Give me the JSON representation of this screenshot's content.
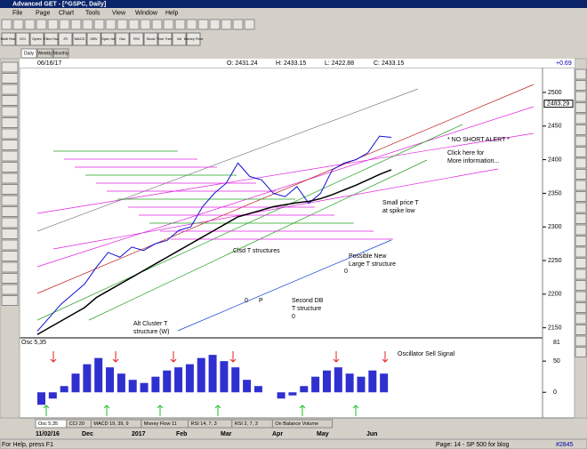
{
  "window_title": "Advanced GET - [^GSPC, Daily]",
  "menu": [
    "File",
    "Page",
    "Chart",
    "Tools",
    "View",
    "Window",
    "Help"
  ],
  "toolbar": [
    "Multi Rstd",
    "OCI",
    "Optex",
    "Elliot Osc",
    "JTI",
    "MACD",
    "OBV",
    "Open Int",
    "Osc",
    "RSI",
    "Stock",
    "Time Trend",
    "Vol",
    "Money Flow"
  ],
  "timeframe_tabs": [
    "Daily",
    "Weekly",
    "Monthly"
  ],
  "header": {
    "date": "06/16/17",
    "open": "O: 2431.24",
    "high": "H: 2433.15",
    "low": "L: 2422.88",
    "close": "C: 2433.15",
    "change": "+0.69"
  },
  "chart_data": [
    {
      "type": "line",
      "series": [
        {
          "color": "#1010d0",
          "values": [
            2145,
            2165,
            2185,
            2200,
            2215,
            2240,
            2262,
            2255,
            2270,
            2265,
            2275,
            2280,
            2295,
            2300,
            2330,
            2350,
            2365,
            2395,
            2375,
            2370,
            2350,
            2345,
            2360,
            2335,
            2350,
            2385,
            2395,
            2400,
            2410,
            2435,
            2433.15
          ]
        },
        {
          "color": "#000000",
          "values": [
            2140,
            2150,
            2160,
            2170,
            2180,
            2195,
            2205,
            2215,
            2225,
            2235,
            2245,
            2255,
            2265,
            2275,
            2285,
            2295,
            2305,
            2315,
            2320,
            2325,
            2330,
            2333,
            2336,
            2338,
            2342,
            2348,
            2355,
            2362,
            2370,
            2378,
            2385
          ]
        }
      ],
      "ylim": [
        2135,
        2537
      ],
      "yticks": [
        2150,
        2200,
        2250,
        2300,
        2350,
        2400,
        2450,
        2500
      ],
      "marker": 2483.29
    },
    {
      "type": "bar",
      "title": "Osc 5,35",
      "color": "#3030d0",
      "values": [
        -20,
        -10,
        10,
        30,
        45,
        55,
        40,
        30,
        20,
        15,
        25,
        35,
        40,
        45,
        55,
        60,
        50,
        40,
        20,
        10,
        0,
        -10,
        -5,
        10,
        25,
        35,
        40,
        30,
        25,
        35,
        30
      ],
      "ylim": [
        -41,
        83
      ],
      "yticks": [
        0,
        50
      ],
      "max_label": 81
    }
  ],
  "annotations": [
    "* NO SHORT ALERT *",
    "Click here for",
    "More information...",
    "Small price T",
    "at spike low",
    "Possible New",
    "Large T structure",
    "Clsd T structures",
    "0",
    "P",
    "0",
    "Second DB",
    "T structure",
    "0",
    "Alt Cluster T",
    "structure (W)",
    "Oscillator Sell Signal"
  ],
  "date_labels": [
    "11/02/16",
    "Dec",
    "2017",
    "Feb",
    "Mar",
    "Apr",
    "May",
    "Jun"
  ],
  "indicator_tabs": [
    "Osc 5,35",
    "CCI 20",
    "MACD 19, 39, 9",
    "Money Flow 11",
    "RSI 14, 7, 3",
    "RSI 2, 7, 3",
    "On Balance Volume"
  ],
  "status": {
    "help": "For Help, press F1",
    "page": "Page: 14 - SP 500 for blog",
    "number": "#2845"
  }
}
